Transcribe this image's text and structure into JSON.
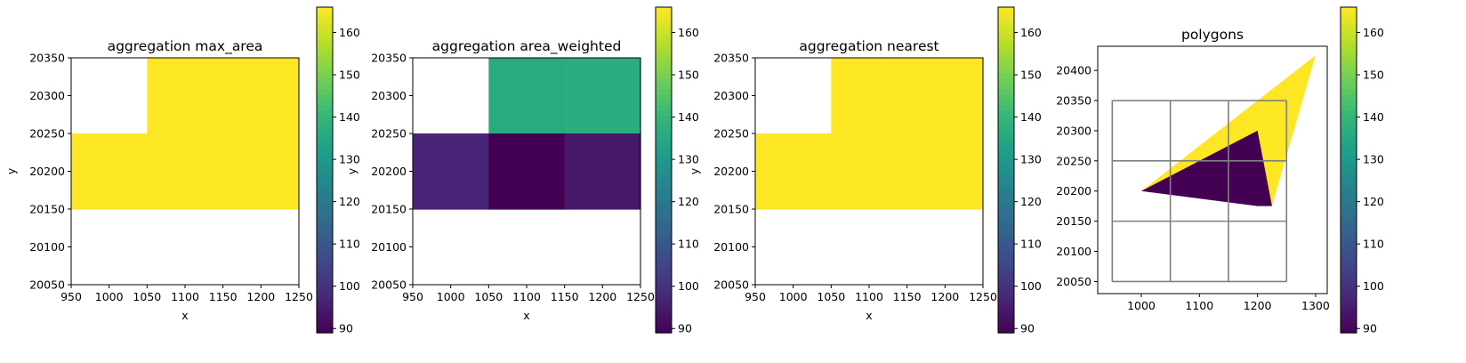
{
  "colormap": {
    "name": "viridis",
    "stops": [
      "#440154",
      "#482878",
      "#3e4989",
      "#31688e",
      "#26828e",
      "#1f9e89",
      "#35b779",
      "#6ece58",
      "#b5de2b",
      "#fde725"
    ]
  },
  "chart_data": [
    {
      "type": "heatmap",
      "title": "aggregation max_area",
      "xlabel": "x",
      "ylabel": "y",
      "xlim": [
        950,
        1250
      ],
      "ylim": [
        20050,
        20350
      ],
      "xticks": [
        "950",
        "1000",
        "1050",
        "1100",
        "1150",
        "1200",
        "1250"
      ],
      "yticks": [
        "20050",
        "20100",
        "20150",
        "20200",
        "20250",
        "20300",
        "20350"
      ],
      "cells": [
        {
          "x": [
            950,
            1050
          ],
          "y": [
            20250,
            20350
          ],
          "value": null
        },
        {
          "x": [
            1050,
            1150
          ],
          "y": [
            20250,
            20350
          ],
          "value": 166
        },
        {
          "x": [
            1150,
            1250
          ],
          "y": [
            20250,
            20350
          ],
          "value": 166
        },
        {
          "x": [
            950,
            1050
          ],
          "y": [
            20150,
            20250
          ],
          "value": 166
        },
        {
          "x": [
            1050,
            1150
          ],
          "y": [
            20150,
            20250
          ],
          "value": 166
        },
        {
          "x": [
            1150,
            1250
          ],
          "y": [
            20150,
            20250
          ],
          "value": 166
        },
        {
          "x": [
            950,
            1050
          ],
          "y": [
            20050,
            20150
          ],
          "value": null
        },
        {
          "x": [
            1050,
            1150
          ],
          "y": [
            20050,
            20150
          ],
          "value": null
        },
        {
          "x": [
            1150,
            1250
          ],
          "y": [
            20050,
            20150
          ],
          "value": null
        }
      ],
      "colorbar": {
        "vmin": 89,
        "vmax": 166,
        "ticks": [
          "90",
          "100",
          "110",
          "120",
          "130",
          "140",
          "150",
          "160"
        ]
      }
    },
    {
      "type": "heatmap",
      "title": "aggregation area_weighted",
      "xlabel": "x",
      "ylabel": "y",
      "xlim": [
        950,
        1250
      ],
      "ylim": [
        20050,
        20350
      ],
      "xticks": [
        "950",
        "1000",
        "1050",
        "1100",
        "1150",
        "1200",
        "1250"
      ],
      "yticks": [
        "20050",
        "20100",
        "20150",
        "20200",
        "20250",
        "20300",
        "20350"
      ],
      "cells": [
        {
          "x": [
            950,
            1050
          ],
          "y": [
            20250,
            20350
          ],
          "value": null
        },
        {
          "x": [
            1050,
            1150
          ],
          "y": [
            20250,
            20350
          ],
          "value": 136
        },
        {
          "x": [
            1150,
            1250
          ],
          "y": [
            20250,
            20350
          ],
          "value": 137
        },
        {
          "x": [
            950,
            1050
          ],
          "y": [
            20150,
            20250
          ],
          "value": 97
        },
        {
          "x": [
            1050,
            1150
          ],
          "y": [
            20150,
            20250
          ],
          "value": 89
        },
        {
          "x": [
            1150,
            1250
          ],
          "y": [
            20150,
            20250
          ],
          "value": 94
        },
        {
          "x": [
            950,
            1050
          ],
          "y": [
            20050,
            20150
          ],
          "value": null
        },
        {
          "x": [
            1050,
            1150
          ],
          "y": [
            20050,
            20150
          ],
          "value": null
        },
        {
          "x": [
            1150,
            1250
          ],
          "y": [
            20050,
            20150
          ],
          "value": null
        }
      ],
      "colorbar": {
        "vmin": 89,
        "vmax": 166,
        "ticks": [
          "90",
          "100",
          "110",
          "120",
          "130",
          "140",
          "150",
          "160"
        ]
      }
    },
    {
      "type": "heatmap",
      "title": "aggregation nearest",
      "xlabel": "x",
      "ylabel": "y",
      "xlim": [
        950,
        1250
      ],
      "ylim": [
        20050,
        20350
      ],
      "xticks": [
        "950",
        "1000",
        "1050",
        "1100",
        "1150",
        "1200",
        "1250"
      ],
      "yticks": [
        "20050",
        "20100",
        "20150",
        "20200",
        "20250",
        "20300",
        "20350"
      ],
      "cells": [
        {
          "x": [
            950,
            1050
          ],
          "y": [
            20250,
            20350
          ],
          "value": null
        },
        {
          "x": [
            1050,
            1150
          ],
          "y": [
            20250,
            20350
          ],
          "value": 166
        },
        {
          "x": [
            1150,
            1250
          ],
          "y": [
            20250,
            20350
          ],
          "value": 166
        },
        {
          "x": [
            950,
            1050
          ],
          "y": [
            20150,
            20250
          ],
          "value": 166
        },
        {
          "x": [
            1050,
            1150
          ],
          "y": [
            20150,
            20250
          ],
          "value": 166
        },
        {
          "x": [
            1150,
            1250
          ],
          "y": [
            20150,
            20250
          ],
          "value": 166
        },
        {
          "x": [
            950,
            1050
          ],
          "y": [
            20050,
            20150
          ],
          "value": null
        },
        {
          "x": [
            1050,
            1150
          ],
          "y": [
            20050,
            20150
          ],
          "value": null
        },
        {
          "x": [
            1150,
            1250
          ],
          "y": [
            20050,
            20150
          ],
          "value": null
        }
      ],
      "colorbar": {
        "vmin": 89,
        "vmax": 166,
        "ticks": [
          "90",
          "100",
          "110",
          "120",
          "130",
          "140",
          "150",
          "160"
        ]
      }
    },
    {
      "type": "polygons",
      "title": "polygons",
      "xlabel": "",
      "ylabel": "",
      "xlim": [
        925,
        1320
      ],
      "ylim": [
        20030,
        20440
      ],
      "xticks": [
        "1000",
        "1100",
        "1200",
        "1300"
      ],
      "yticks": [
        "20050",
        "20100",
        "20150",
        "20200",
        "20250",
        "20300",
        "20350",
        "20400"
      ],
      "polygons": [
        {
          "points": [
            [
              1000,
              20200
            ],
            [
              1300,
              20425
            ],
            [
              1225,
              20175
            ]
          ],
          "value": 166
        },
        {
          "points": [
            [
              1000,
              20200
            ],
            [
              1200,
              20300
            ],
            [
              1225,
              20175
            ],
            [
              1200,
              20175
            ]
          ],
          "value": 89
        }
      ],
      "grid_cells": {
        "x_edges": [
          950,
          1050,
          1150,
          1250
        ],
        "y_edges": [
          20050,
          20150,
          20250,
          20350
        ],
        "color": "#808080"
      },
      "colorbar": {
        "vmin": 89,
        "vmax": 166,
        "ticks": [
          "90",
          "100",
          "110",
          "120",
          "130",
          "140",
          "150",
          "160"
        ]
      }
    }
  ]
}
